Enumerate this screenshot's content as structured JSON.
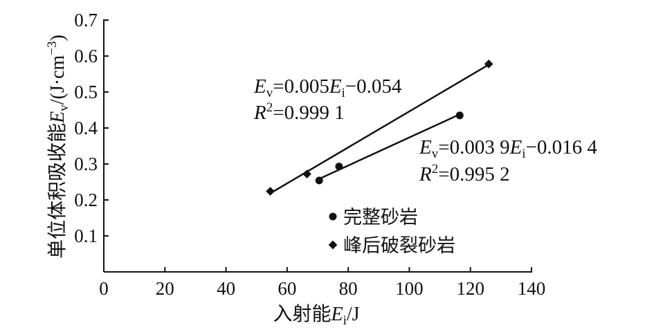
{
  "chart_data": {
    "type": "scatter",
    "xlabel": "入射能Ei/J",
    "ylabel": "单位体积吸收能Ev/(J·cm⁻³)",
    "xlim": [
      0,
      140
    ],
    "ylim": [
      0,
      0.7
    ],
    "x_ticks": [
      "0",
      "20",
      "40",
      "60",
      "80",
      "100",
      "120",
      "140"
    ],
    "y_ticks": [
      "0.1",
      "0.2",
      "0.3",
      "0.4",
      "0.5",
      "0.6",
      "0.7"
    ],
    "grid": false,
    "legend_position": "bottom-center",
    "series": [
      {
        "name": "完整砂岩",
        "marker": "circle",
        "points": [
          [
            70.5,
            0.254
          ],
          [
            77.0,
            0.293
          ],
          [
            116.5,
            0.435
          ]
        ],
        "fit": {
          "slope": 0.0039,
          "intercept": -0.0164,
          "x_range": [
            70.5,
            116.5
          ]
        },
        "equation": {
          "lhs": "E",
          "lhs_sub": "v",
          "eq1": "=0.003 9",
          "rhs": "E",
          "rhs_sub": "i",
          "tail": "−0.016 4"
        },
        "r2": {
          "label": "R",
          "sup": "2",
          "value": "=0.995 2"
        }
      },
      {
        "name": "峰后破裂砂岩",
        "marker": "diamond",
        "points": [
          [
            54.5,
            0.224
          ],
          [
            66.5,
            0.272
          ],
          [
            126.0,
            0.578
          ]
        ],
        "fit": {
          "slope": 0.005,
          "intercept": -0.054,
          "x_range": [
            54.5,
            126.0
          ]
        },
        "equation": {
          "lhs": "E",
          "lhs_sub": "v",
          "eq1": "=0.005",
          "rhs": "E",
          "rhs_sub": "i",
          "tail": "−0.054"
        },
        "r2": {
          "label": "R",
          "sup": "2",
          "value": "=0.999 1"
        }
      }
    ]
  },
  "labels": {
    "x_title_main": "入射能",
    "x_title_var": "E",
    "x_title_sub": "i",
    "x_title_unit": "/J",
    "y_title_main": "单位体积吸收能",
    "y_title_var": "E",
    "y_title_sub": "v",
    "y_title_unit": "/(J·cm",
    "y_title_sup": "−3",
    "y_title_end": ")"
  }
}
